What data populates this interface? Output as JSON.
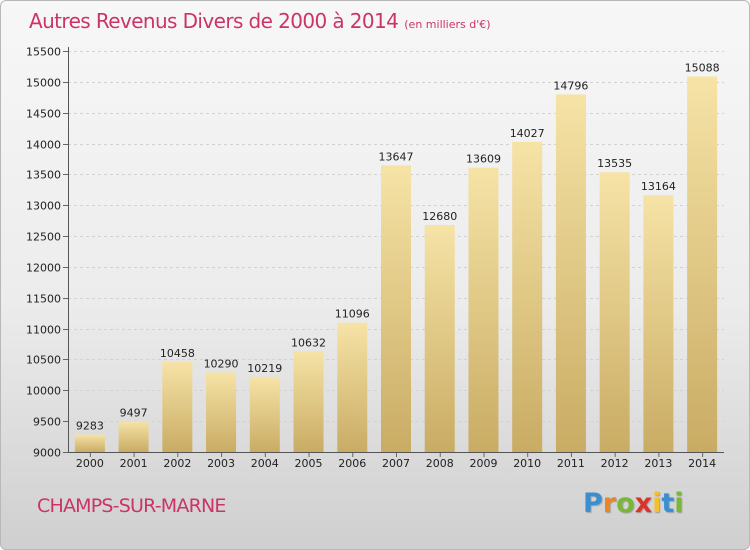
{
  "header": {
    "title": "Autres Revenus Divers de 2000 à 2014",
    "subtitle": "(en milliers d'€)"
  },
  "footer": {
    "city": "CHAMPS-SUR-MARNE",
    "logo": {
      "text": "Proxiti",
      "letters": [
        {
          "char": "P",
          "color": "#3a8fd0"
        },
        {
          "char": "r",
          "color": "#e8862a"
        },
        {
          "char": "o",
          "color": "#7ab63a"
        },
        {
          "char": "x",
          "color": "#d9342b"
        },
        {
          "char": "i",
          "color": "#f2c12e"
        },
        {
          "char": "t",
          "color": "#3a8fd0"
        },
        {
          "char": "i",
          "color": "#7ab63a"
        }
      ]
    }
  },
  "colors": {
    "accent": "#cc3366",
    "bar_light": "#f6e3a6",
    "bar_dark": "#c9ac64"
  },
  "chart_data": {
    "type": "bar",
    "title": "Autres Revenus Divers de 2000 à 2014",
    "subtitle": "(en milliers d'€)",
    "xlabel": "",
    "ylabel": "",
    "categories": [
      "2000",
      "2001",
      "2002",
      "2003",
      "2004",
      "2005",
      "2006",
      "2007",
      "2008",
      "2009",
      "2010",
      "2011",
      "2012",
      "2013",
      "2014"
    ],
    "values": [
      9283,
      9497,
      10458,
      10290,
      10219,
      10632,
      11096,
      13647,
      12680,
      13609,
      14027,
      14796,
      13535,
      13164,
      15088
    ],
    "ylim": [
      9000,
      15500
    ],
    "yticks": [
      9000,
      9500,
      10000,
      10500,
      11000,
      11500,
      12000,
      12500,
      13000,
      13500,
      14000,
      14500,
      15000,
      15500
    ],
    "grid": true,
    "legend": "none",
    "data_labels": true
  }
}
